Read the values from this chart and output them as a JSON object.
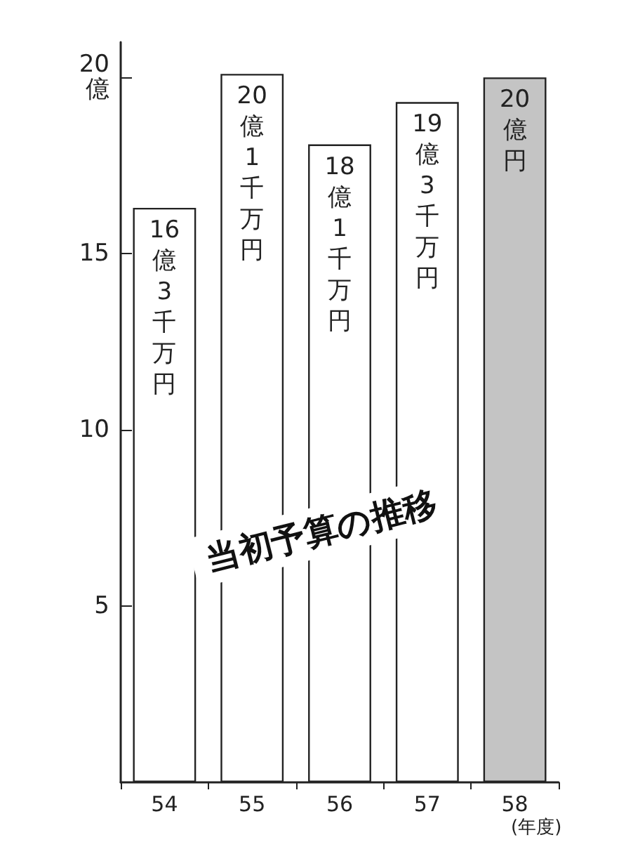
{
  "chart_data": {
    "type": "bar",
    "title": "当初予算の推移",
    "xlabel": "(年度)",
    "categories": [
      "54",
      "55",
      "56",
      "57",
      "58"
    ],
    "values": [
      16.3,
      20.1,
      18.1,
      19.3,
      20
    ],
    "colors": [
      "#ffffff",
      "#ffffff",
      "#ffffff",
      "#ffffff",
      "#c4c4c4"
    ],
    "value_labels": [
      "16億3千万円",
      "20億1千万円",
      "18億1千万円",
      "19億3千万円",
      "20億円"
    ],
    "ylim": [
      0,
      21
    ],
    "yticks": [
      5,
      10,
      15,
      {
        "value": 20,
        "label": "20\n億"
      }
    ],
    "grid": false
  }
}
